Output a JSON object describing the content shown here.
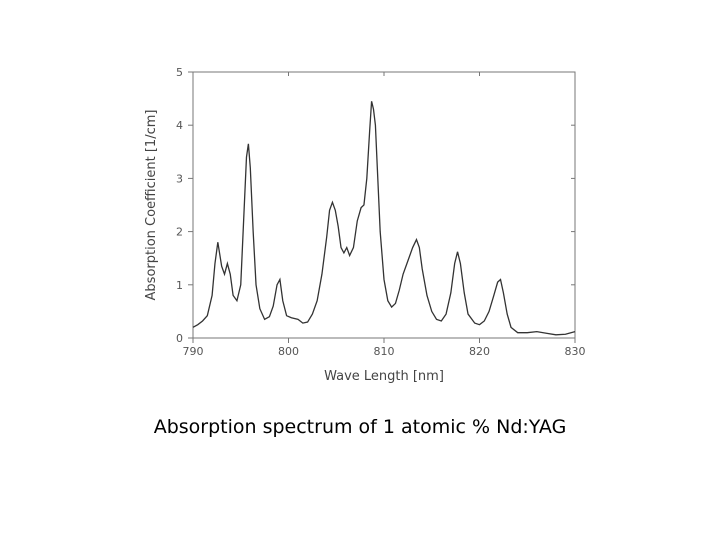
{
  "caption": "Absorption spectrum of 1 atomic % Nd:YAG",
  "chart_data": {
    "type": "line",
    "title": "",
    "xlabel": "Wave Length [nm]",
    "ylabel": "Absorption Coefficient  [1/cm]",
    "xlim": [
      790,
      830
    ],
    "ylim": [
      0,
      5
    ],
    "xticks": [
      790,
      800,
      810,
      820,
      830
    ],
    "yticks": [
      0,
      1,
      2,
      3,
      4,
      5
    ],
    "grid": false,
    "line_color": "#333333",
    "series": [
      {
        "x": [
          790,
          790.5,
          791,
          791.5,
          792,
          792.3,
          792.6,
          793,
          793.3,
          793.6,
          793.9,
          794.2,
          794.6,
          795,
          795.3,
          795.6,
          795.8,
          796,
          796.3,
          796.6,
          797,
          797.5,
          798,
          798.4,
          798.8,
          799.1,
          799.4,
          799.8,
          800.3,
          801,
          801.5,
          802,
          802.5,
          803,
          803.5,
          804,
          804.3,
          804.6,
          804.9,
          805.2,
          805.5,
          805.8,
          806.1,
          806.4,
          806.8,
          807.2,
          807.6,
          807.9,
          808.2,
          808.5,
          808.7,
          808.9,
          809.1,
          809.3,
          809.6,
          810,
          810.4,
          810.8,
          811.2,
          811.6,
          812,
          812.5,
          813,
          813.4,
          813.7,
          814,
          814.5,
          815,
          815.5,
          816,
          816.5,
          817,
          817.4,
          817.7,
          818,
          818.4,
          818.8,
          819.5,
          820,
          820.5,
          821,
          821.5,
          821.9,
          822.2,
          822.5,
          822.9,
          823.3,
          824,
          825,
          826,
          827,
          828,
          829,
          830
        ],
        "y": [
          0.2,
          0.25,
          0.32,
          0.42,
          0.8,
          1.4,
          1.8,
          1.35,
          1.2,
          1.4,
          1.2,
          0.8,
          0.7,
          1.0,
          2.2,
          3.4,
          3.65,
          3.2,
          2.0,
          1.0,
          0.55,
          0.35,
          0.4,
          0.6,
          1.0,
          1.1,
          0.7,
          0.42,
          0.38,
          0.35,
          0.28,
          0.3,
          0.45,
          0.7,
          1.2,
          1.9,
          2.4,
          2.55,
          2.4,
          2.1,
          1.7,
          1.6,
          1.7,
          1.55,
          1.7,
          2.2,
          2.45,
          2.5,
          3.0,
          3.9,
          4.45,
          4.3,
          4.0,
          3.2,
          2.0,
          1.1,
          0.7,
          0.58,
          0.65,
          0.9,
          1.2,
          1.45,
          1.7,
          1.85,
          1.7,
          1.3,
          0.8,
          0.5,
          0.35,
          0.32,
          0.45,
          0.85,
          1.4,
          1.62,
          1.4,
          0.85,
          0.45,
          0.28,
          0.25,
          0.32,
          0.5,
          0.8,
          1.05,
          1.1,
          0.85,
          0.45,
          0.2,
          0.1,
          0.1,
          0.12,
          0.09,
          0.06,
          0.07,
          0.12
        ]
      }
    ]
  }
}
